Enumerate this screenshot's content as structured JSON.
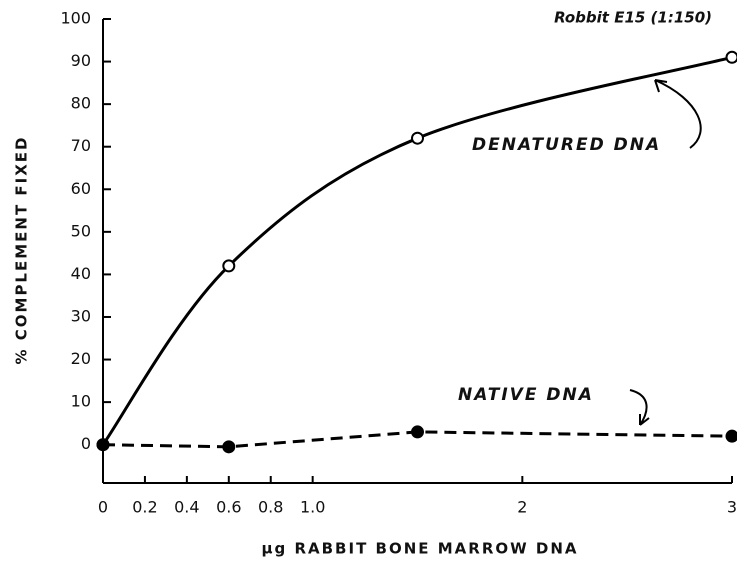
{
  "chart_data": {
    "type": "line",
    "annotation": "Robbit E15 (1:150)",
    "xlabel": "μg RABBIT BONE MARROW DNA",
    "ylabel": "% COMPLEMENT FIXED",
    "xlim": [
      0,
      3
    ],
    "xticks": [
      0,
      0.2,
      0.4,
      0.6,
      0.8,
      {
        "value": 1,
        "label": "1.0"
      },
      2,
      3
    ],
    "ylim": [
      -9,
      100
    ],
    "yticks": [
      0,
      10,
      20,
      30,
      40,
      50,
      60,
      70,
      80,
      90,
      100
    ],
    "series": [
      {
        "name": "DENATURED DNA",
        "color": "#000000",
        "smooth": true,
        "dashed": false,
        "marker": "open",
        "x": [
          0,
          0.6,
          1.5,
          3
        ],
        "values": [
          0,
          42,
          72,
          91
        ]
      },
      {
        "name": "NATIVE DNA",
        "color": "#000000",
        "smooth": false,
        "dashed": true,
        "marker": "filled",
        "x": [
          0,
          0.6,
          1.5,
          3
        ],
        "values": [
          0,
          -0.5,
          3,
          2
        ]
      }
    ]
  }
}
